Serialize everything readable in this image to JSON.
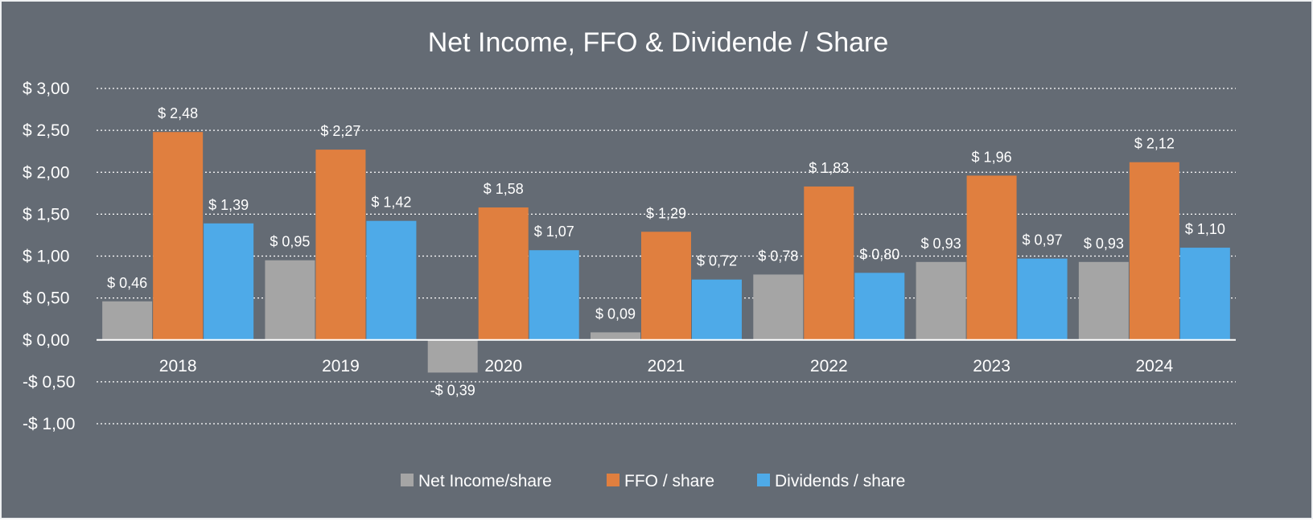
{
  "chart_data": {
    "type": "bar",
    "title": "Net Income, FFO & Dividende / Share",
    "categories": [
      "2018",
      "2019",
      "2020",
      "2021",
      "2022",
      "2023",
      "2024"
    ],
    "series": [
      {
        "name": "Net Income/share",
        "color": "#a5a5a5",
        "values": [
          0.46,
          0.95,
          -0.39,
          0.09,
          0.78,
          0.93,
          0.93
        ],
        "labels": [
          "$ 0,46",
          "$ 0,95",
          "-$ 0,39",
          "$ 0,09",
          "$ 0,78",
          "$ 0,93",
          "$ 0,93"
        ]
      },
      {
        "name": "FFO / share",
        "color": "#e07f3f",
        "values": [
          2.48,
          2.27,
          1.58,
          1.29,
          1.83,
          1.96,
          2.12
        ],
        "labels": [
          "$ 2,48",
          "$ 2,27",
          "$ 1,58",
          "$ 1,29",
          "$ 1,83",
          "$ 1,96",
          "$ 2,12"
        ]
      },
      {
        "name": "Dividends / share",
        "color": "#4eaae8",
        "values": [
          1.39,
          1.42,
          1.07,
          0.72,
          0.8,
          0.97,
          1.1
        ],
        "labels": [
          "$ 1,39",
          "$ 1,42",
          "$ 1,07",
          "$ 0,72",
          "$ 0,80",
          "$ 0,97",
          "$ 1,10"
        ]
      }
    ],
    "ylim": [
      -1.0,
      3.0
    ],
    "yticks": [
      3.0,
      2.5,
      2.0,
      1.5,
      1.0,
      0.5,
      0.0,
      -0.5,
      -1.0
    ],
    "ytick_labels": [
      "$ 3,00",
      "$ 2,50",
      "$ 2,00",
      "$ 1,50",
      "$ 1,00",
      "$ 0,50",
      "$ 0,00",
      "-$ 0,50",
      "-$ 1,00"
    ],
    "grid": true,
    "legend_position": "bottom",
    "background_color": "#646b74"
  }
}
